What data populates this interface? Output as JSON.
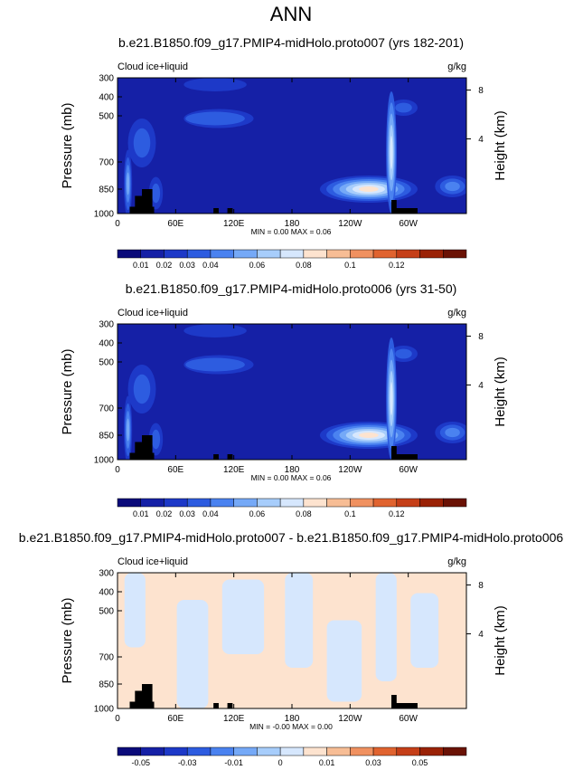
{
  "figure": {
    "title": "ANN"
  },
  "colormap": {
    "a": [
      "#0b0b7a",
      "#1520a6",
      "#1d39c8",
      "#2d5ce0",
      "#4a82f0",
      "#75a9f7",
      "#a7cdfb",
      "#d6e7fd",
      "#fde3cf",
      "#f7bd95",
      "#f09160",
      "#e0632f",
      "#c53f18",
      "#9a2206",
      "#6a1205"
    ],
    "b": [
      "#0b0b7a",
      "#1520a6",
      "#1d39c8",
      "#2d5ce0",
      "#4a82f0",
      "#75a9f7",
      "#a7cdfb",
      "#d6e7fd",
      "#fde3cf",
      "#f7bd95",
      "#f09160",
      "#e0632f",
      "#c53f18",
      "#9a2206",
      "#6a1205"
    ]
  },
  "chart_data": [
    {
      "type": "heatmap",
      "title": "b.e21.B1850.f09_g17.PMIP4-midHolo.proto007 (yrs 182-201)",
      "left_label": "Cloud ice+liquid",
      "right_label": "g/kg",
      "ylabel": "Pressure (mb)",
      "ylabel_right": "Height (km)",
      "y_ticks": [
        "300",
        "400",
        "500",
        "700",
        "850",
        "1000"
      ],
      "y_ticks_right": [
        "8",
        "4"
      ],
      "x_ticks": [
        "0",
        "60E",
        "120E",
        "180",
        "120W",
        "60W"
      ],
      "minmax": "MIN =   0.00  MAX =   0.06",
      "colorbar_labels": [
        "0.01",
        "0.02",
        "0.03",
        "0.04",
        "0.06",
        "0.08",
        "0.1",
        "0.12"
      ],
      "field": "mean"
    },
    {
      "type": "heatmap",
      "title": "b.e21.B1850.f09_g17.PMIP4-midHolo.proto006 (yrs 31-50)",
      "left_label": "Cloud ice+liquid",
      "right_label": "g/kg",
      "ylabel": "Pressure (mb)",
      "ylabel_right": "Height (km)",
      "y_ticks": [
        "300",
        "400",
        "500",
        "700",
        "850",
        "1000"
      ],
      "y_ticks_right": [
        "8",
        "4"
      ],
      "x_ticks": [
        "0",
        "60E",
        "120E",
        "180",
        "120W",
        "60W"
      ],
      "minmax": "MIN =   0.00  MAX =   0.06",
      "colorbar_labels": [
        "0.01",
        "0.02",
        "0.03",
        "0.04",
        "0.06",
        "0.08",
        "0.1",
        "0.12"
      ],
      "field": "mean"
    },
    {
      "type": "heatmap",
      "title": "b.e21.B1850.f09_g17.PMIP4-midHolo.proto007 - b.e21.B1850.f09_g17.PMIP4-midHolo.proto006",
      "left_label": "Cloud ice+liquid",
      "right_label": "g/kg",
      "ylabel": "Pressure (mb)",
      "ylabel_right": "Height (km)",
      "y_ticks": [
        "300",
        "400",
        "500",
        "700",
        "850",
        "1000"
      ],
      "y_ticks_right": [
        "8",
        "4"
      ],
      "x_ticks": [
        "0",
        "60E",
        "120E",
        "180",
        "120W",
        "60W"
      ],
      "minmax": "MIN =  -0.00  MAX =   0.00",
      "colorbar_labels": [
        "-0.05",
        "-0.03",
        "-0.01",
        "0",
        "0.01",
        "0.03",
        "0.05"
      ],
      "field": "difference"
    }
  ]
}
